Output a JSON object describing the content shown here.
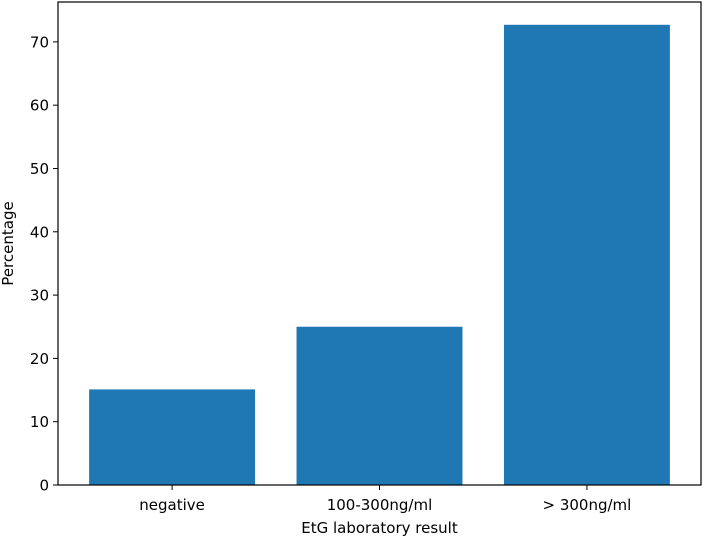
{
  "chart_data": {
    "type": "bar",
    "categories": [
      "negative",
      "100-300ng/ml",
      "> 300ng/ml"
    ],
    "values": [
      15.1,
      25.0,
      72.7
    ],
    "title": "",
    "xlabel": "EtG laboratory result",
    "ylabel": "Percentage",
    "ylim": [
      0,
      76.3
    ],
    "yticks": [
      0,
      10,
      20,
      30,
      40,
      50,
      60,
      70
    ],
    "grid": false,
    "bar_color": "#1f77b4"
  }
}
